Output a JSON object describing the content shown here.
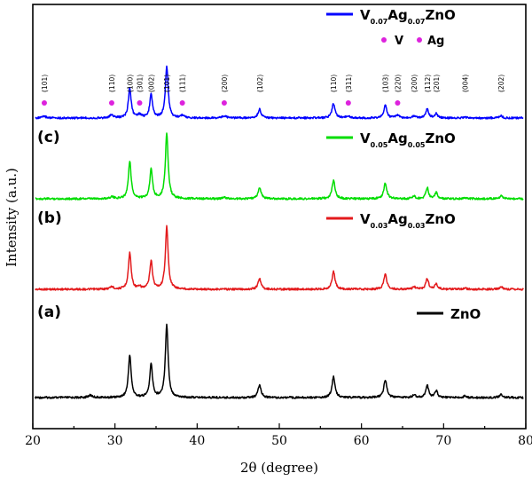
{
  "chart_data": {
    "type": "line",
    "xlabel": "2θ (degree)",
    "ylabel": "Intensity (a.u.)",
    "xlim": [
      20,
      80
    ],
    "xticks": [
      20,
      30,
      40,
      50,
      60,
      70,
      80
    ],
    "grid": false,
    "legend_position": "right, one entry above each trace",
    "peaks": [
      {
        "pos": 31.8,
        "h": 0.58,
        "w": 0.2
      },
      {
        "pos": 34.4,
        "h": 0.45,
        "w": 0.2
      },
      {
        "pos": 36.3,
        "h": 1.0,
        "w": 0.2
      },
      {
        "pos": 47.6,
        "h": 0.17,
        "w": 0.22
      },
      {
        "pos": 56.6,
        "h": 0.28,
        "w": 0.22
      },
      {
        "pos": 62.9,
        "h": 0.24,
        "w": 0.22
      },
      {
        "pos": 66.4,
        "h": 0.04,
        "w": 0.2
      },
      {
        "pos": 68.0,
        "h": 0.17,
        "w": 0.2
      },
      {
        "pos": 69.1,
        "h": 0.09,
        "w": 0.2
      },
      {
        "pos": 72.6,
        "h": 0.02,
        "w": 0.2
      },
      {
        "pos": 77.0,
        "h": 0.04,
        "w": 0.22
      }
    ],
    "series": [
      {
        "label": "(a)",
        "name": "ZnO",
        "color": "#000000",
        "amplitude": 0.9,
        "extra_peaks": [
          {
            "pos": 27.0,
            "h": 0.03,
            "w": 0.3
          }
        ]
      },
      {
        "label": "(b)",
        "name": "V0.03Ag0.03ZnO",
        "name_parts": [
          "V",
          "0.03",
          "Ag",
          "0.03",
          "ZnO"
        ],
        "color": "#e31a1c",
        "amplitude": 0.75,
        "extra_peaks": [
          {
            "pos": 29.6,
            "h": 0.04,
            "w": 0.25
          },
          {
            "pos": 33.0,
            "h": 0.03,
            "w": 0.25
          }
        ]
      },
      {
        "label": "(c)",
        "name": "V0.05Ag0.05ZnO",
        "name_parts": [
          "V",
          "0.05",
          "Ag",
          "0.05",
          "ZnO"
        ],
        "color": "#00dd00",
        "amplitude": 0.8,
        "extra_peaks": [
          {
            "pos": 29.6,
            "h": 0.03,
            "w": 0.25
          },
          {
            "pos": 43.3,
            "h": 0.02,
            "w": 0.25
          }
        ]
      },
      {
        "label": "",
        "name": "V0.07Ag0.07ZnO",
        "name_parts": [
          "V",
          "0.07",
          "Ag",
          "0.07",
          "ZnO"
        ],
        "color": "#0000ff",
        "amplitude": 0.75,
        "extra_peaks": [
          {
            "pos": 21.4,
            "h": 0.03,
            "w": 0.3
          },
          {
            "pos": 29.6,
            "h": 0.06,
            "w": 0.25
          },
          {
            "pos": 33.0,
            "h": 0.06,
            "w": 0.25
          },
          {
            "pos": 38.2,
            "h": 0.05,
            "w": 0.25
          },
          {
            "pos": 43.3,
            "h": 0.04,
            "w": 0.3
          },
          {
            "pos": 58.4,
            "h": 0.04,
            "w": 0.25
          },
          {
            "pos": 64.4,
            "h": 0.05,
            "w": 0.25
          }
        ]
      }
    ],
    "markers_legend": {
      "items": [
        "V",
        "Ag"
      ],
      "color": "#dd22dd"
    },
    "markers": [
      {
        "x": 21.4,
        "type": "V"
      },
      {
        "x": 29.6,
        "type": "V"
      },
      {
        "x": 33.0,
        "type": "Ag"
      },
      {
        "x": 38.2,
        "type": "Ag"
      },
      {
        "x": 43.3,
        "type": "Ag"
      },
      {
        "x": 58.4,
        "type": "V"
      },
      {
        "x": 64.4,
        "type": "Ag"
      }
    ],
    "peak_labels": [
      {
        "x": 21.4,
        "text": "(101)"
      },
      {
        "x": 29.6,
        "text": "(110)"
      },
      {
        "x": 31.8,
        "text": "(100)"
      },
      {
        "x": 33.0,
        "text": "(301)"
      },
      {
        "x": 34.4,
        "text": "(002)"
      },
      {
        "x": 36.3,
        "text": "(101)"
      },
      {
        "x": 38.2,
        "text": "(111)"
      },
      {
        "x": 43.3,
        "text": "(200)"
      },
      {
        "x": 47.6,
        "text": "(102)"
      },
      {
        "x": 56.6,
        "text": "(110)"
      },
      {
        "x": 58.4,
        "text": "(311)"
      },
      {
        "x": 62.9,
        "text": "(103)"
      },
      {
        "x": 64.4,
        "text": "(220)"
      },
      {
        "x": 66.4,
        "text": "(200)"
      },
      {
        "x": 68.0,
        "text": "(112)"
      },
      {
        "x": 69.1,
        "text": "(201)"
      },
      {
        "x": 72.6,
        "text": "(004)"
      },
      {
        "x": 77.0,
        "text": "(202)"
      }
    ]
  }
}
